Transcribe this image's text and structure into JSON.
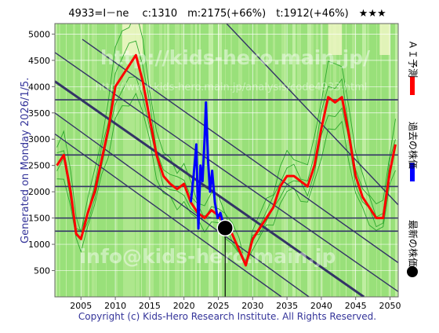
{
  "header": {
    "title": "4933=I－ne　 c:1310　m:2175(+66%)　t:1912(+46%)　★★★"
  },
  "side_label": "Generated on Monday 2026/1/5.",
  "watermarks": {
    "site": "http://kids-hero.main.jp/",
    "path": "http://www.kids-hero.main.jp/analysis/code4933.html",
    "email": "info@kids-hero.main.jp"
  },
  "footer": {
    "copyright": "Copyright (c) Kids-Hero Research Institute. All Rights Reserved."
  },
  "legend": [
    {
      "label": "ＡＩ予測",
      "color": "#ff0000",
      "marker": "line"
    },
    {
      "label": "過去の株価",
      "color": "#0000ff",
      "marker": "line"
    },
    {
      "label": "最新の株価",
      "color": "#000000",
      "marker": "dot"
    }
  ],
  "chart_data": {
    "type": "line",
    "title": "",
    "xlabel": "",
    "ylabel": "",
    "xlim": [
      2001.2,
      2051.2
    ],
    "ylim": [
      0,
      5200
    ],
    "x_ticks": [
      2005,
      2010,
      2015,
      2020,
      2025,
      2030,
      2035,
      2040,
      2045,
      2050
    ],
    "y_ticks": [
      500,
      1000,
      1500,
      2000,
      2500,
      3000,
      3500,
      4000,
      4500,
      5000
    ],
    "grid": true,
    "legend_position": "right",
    "horizontal_levels": [
      1250,
      1500,
      2100,
      2700,
      3750
    ],
    "trend_lines": [
      {
        "from": [
          2001.2,
          4650
        ],
        "to": [
          2051.2,
          100
        ]
      },
      {
        "from": [
          2001.2,
          4100
        ],
        "to": [
          2046.2,
          0
        ]
      },
      {
        "from": [
          2001.2,
          3500
        ],
        "to": [
          2038.2,
          0
        ]
      },
      {
        "from": [
          2001.2,
          3100
        ],
        "to": [
          2034.2,
          0
        ]
      },
      {
        "from": [
          2005.2,
          4900
        ],
        "to": [
          2051.2,
          650
        ]
      },
      {
        "from": [
          2026.2,
          5200
        ],
        "to": [
          2051.2,
          1750
        ]
      }
    ],
    "series": [
      {
        "name": "ＡＩ予測",
        "color": "#ff0000",
        "x": [
          2001.5,
          2002.5,
          2003.5,
          2004.3,
          2005.0,
          2006.0,
          2007.0,
          2008.0,
          2009.0,
          2010.0,
          2011.0,
          2012.0,
          2013.0,
          2014.0,
          2015.0,
          2016.0,
          2017.0,
          2018.0,
          2019.0,
          2020.0,
          2021.0,
          2022.0,
          2023.0,
          2024.0,
          2025.0,
          2026.0,
          2027.0,
          2028.0,
          2029.0,
          2030.0,
          2031.0,
          2032.0,
          2033.0,
          2034.0,
          2035.0,
          2036.0,
          2037.0,
          2038.0,
          2039.0,
          2040.0,
          2041.0,
          2042.0,
          2043.0,
          2044.0,
          2045.0,
          2046.0,
          2047.0,
          2048.0,
          2049.0,
          2050.0,
          2050.8
        ],
        "values": [
          2500,
          2700,
          2000,
          1200,
          1100,
          1600,
          2000,
          2600,
          3200,
          4000,
          4200,
          4400,
          4600,
          4100,
          3400,
          2700,
          2300,
          2150,
          2050,
          2150,
          1800,
          1600,
          1500,
          1650,
          1550,
          1400,
          1200,
          900,
          600,
          1100,
          1300,
          1500,
          1700,
          2100,
          2300,
          2300,
          2200,
          2100,
          2500,
          3200,
          3800,
          3700,
          3800,
          3100,
          2300,
          1900,
          1700,
          1500,
          1500,
          2400,
          2900
        ]
      },
      {
        "name": "過去の株価",
        "color": "#0000ff",
        "x": [
          2021.0,
          2021.4,
          2021.8,
          2022.1,
          2022.4,
          2022.7,
          2023.0,
          2023.2,
          2023.5,
          2023.8,
          2024.1,
          2024.5,
          2024.9,
          2025.3,
          2025.7,
          2026.0
        ],
        "values": [
          1800,
          2300,
          2900,
          1300,
          2500,
          2200,
          3000,
          3700,
          2600,
          2000,
          2400,
          1800,
          1500,
          1600,
          1400,
          1310
        ]
      }
    ],
    "latest": {
      "x": 2026.0,
      "value": 1310
    }
  }
}
